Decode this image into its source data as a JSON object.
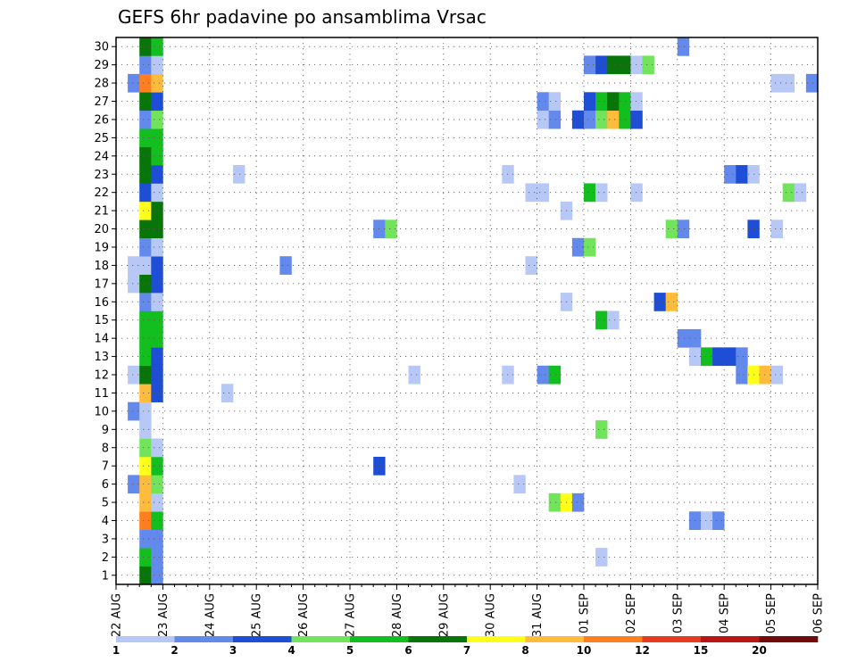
{
  "chart_data": {
    "type": "heatmap",
    "title": "GEFS 6hr padavine po ansamblima Vrsac",
    "xlabel": "",
    "ylabel": "",
    "x_tick_labels": [
      "22 AUG",
      "23 AUG",
      "24 AUG",
      "25 AUG",
      "26 AUG",
      "27 AUG",
      "28 AUG",
      "29 AUG",
      "30 AUG",
      "31 AUG",
      "01 SEP",
      "02 SEP",
      "03 SEP",
      "04 SEP",
      "05 SEP",
      "06 SEP"
    ],
    "y_tick_labels": [
      "1",
      "2",
      "3",
      "4",
      "5",
      "6",
      "7",
      "8",
      "9",
      "10",
      "11",
      "12",
      "13",
      "14",
      "15",
      "16",
      "17",
      "18",
      "19",
      "20",
      "21",
      "22",
      "23",
      "24",
      "25",
      "26",
      "27",
      "28",
      "29",
      "30"
    ],
    "ylim": [
      0.5,
      30.5
    ],
    "x_steps_per_day": 4,
    "grid": true,
    "colorbar": {
      "labels": [
        "1",
        "2",
        "3",
        "4",
        "5",
        "6",
        "7",
        "8",
        "10",
        "12",
        "15",
        "20"
      ],
      "colors": [
        "#b7c7f6",
        "#6489ed",
        "#1f4ed6",
        "#71e45c",
        "#12bf1e",
        "#087508",
        "#ffff1a",
        "#ffbb3c",
        "#ff7f1f",
        "#e53c1e",
        "#b81616",
        "#720a0a"
      ]
    },
    "cells": [
      [
        2,
        1,
        6
      ],
      [
        3,
        1,
        2
      ],
      [
        2,
        2,
        5
      ],
      [
        3,
        2,
        2
      ],
      [
        2,
        3,
        2
      ],
      [
        3,
        3,
        2
      ],
      [
        2,
        4,
        9
      ],
      [
        3,
        4,
        5
      ],
      [
        2,
        5,
        8
      ],
      [
        3,
        5,
        1
      ],
      [
        1,
        6,
        2
      ],
      [
        2,
        6,
        8
      ],
      [
        3,
        6,
        4
      ],
      [
        2,
        7,
        7
      ],
      [
        3,
        7,
        5
      ],
      [
        2,
        8,
        4
      ],
      [
        3,
        8,
        1
      ],
      [
        2,
        9,
        1
      ],
      [
        1,
        10,
        2
      ],
      [
        2,
        10,
        1
      ],
      [
        2,
        11,
        8
      ],
      [
        3,
        11,
        3
      ],
      [
        1,
        12,
        1
      ],
      [
        2,
        12,
        6
      ],
      [
        3,
        12,
        3
      ],
      [
        2,
        13,
        5
      ],
      [
        3,
        13,
        3
      ],
      [
        2,
        14,
        5
      ],
      [
        3,
        14,
        5
      ],
      [
        2,
        15,
        5
      ],
      [
        3,
        15,
        5
      ],
      [
        2,
        16,
        2
      ],
      [
        3,
        16,
        1
      ],
      [
        1,
        17,
        1
      ],
      [
        2,
        17,
        6
      ],
      [
        3,
        17,
        3
      ],
      [
        1,
        18,
        1
      ],
      [
        2,
        18,
        1
      ],
      [
        3,
        18,
        3
      ],
      [
        2,
        19,
        2
      ],
      [
        3,
        19,
        1
      ],
      [
        2,
        20,
        6
      ],
      [
        3,
        20,
        6
      ],
      [
        2,
        21,
        7
      ],
      [
        3,
        21,
        6
      ],
      [
        2,
        22,
        3
      ],
      [
        3,
        22,
        1
      ],
      [
        2,
        23,
        6
      ],
      [
        3,
        23,
        3
      ],
      [
        2,
        24,
        6
      ],
      [
        3,
        24,
        5
      ],
      [
        2,
        25,
        5
      ],
      [
        3,
        25,
        5
      ],
      [
        2,
        26,
        2
      ],
      [
        3,
        26,
        4
      ],
      [
        2,
        27,
        6
      ],
      [
        3,
        27,
        3
      ],
      [
        1,
        28,
        2
      ],
      [
        2,
        28,
        9
      ],
      [
        3,
        28,
        8
      ],
      [
        2,
        29,
        2
      ],
      [
        3,
        29,
        1
      ],
      [
        2,
        30,
        6
      ],
      [
        3,
        30,
        5
      ],
      [
        9,
        11,
        1
      ],
      [
        10,
        23,
        1
      ],
      [
        14,
        18,
        2
      ],
      [
        22,
        7,
        3
      ],
      [
        22,
        20,
        2
      ],
      [
        23,
        20,
        4
      ],
      [
        25,
        12,
        1
      ],
      [
        33,
        12,
        1
      ],
      [
        33,
        23,
        1
      ],
      [
        34,
        6,
        1
      ],
      [
        35,
        18,
        1
      ],
      [
        35,
        22,
        1
      ],
      [
        36,
        22,
        1
      ],
      [
        36,
        12,
        2
      ],
      [
        37,
        12,
        5
      ],
      [
        36,
        26,
        1
      ],
      [
        36,
        27,
        2
      ],
      [
        37,
        26,
        2
      ],
      [
        37,
        27,
        1
      ],
      [
        37,
        5,
        4
      ],
      [
        38,
        5,
        7
      ],
      [
        39,
        5,
        2
      ],
      [
        38,
        21,
        1
      ],
      [
        38,
        16,
        1
      ],
      [
        39,
        19,
        2
      ],
      [
        40,
        19,
        4
      ],
      [
        39,
        26,
        3
      ],
      [
        40,
        26,
        2
      ],
      [
        40,
        27,
        3
      ],
      [
        40,
        29,
        2
      ],
      [
        40,
        22,
        5
      ],
      [
        41,
        26,
        4
      ],
      [
        41,
        27,
        5
      ],
      [
        41,
        29,
        3
      ],
      [
        41,
        15,
        5
      ],
      [
        41,
        9,
        4
      ],
      [
        41,
        2,
        1
      ],
      [
        41,
        22,
        1
      ],
      [
        42,
        26,
        8
      ],
      [
        42,
        27,
        6
      ],
      [
        42,
        29,
        6
      ],
      [
        42,
        15,
        1
      ],
      [
        43,
        26,
        5
      ],
      [
        43,
        27,
        5
      ],
      [
        43,
        29,
        6
      ],
      [
        44,
        26,
        3
      ],
      [
        44,
        27,
        1
      ],
      [
        44,
        29,
        1
      ],
      [
        44,
        22,
        1
      ],
      [
        45,
        29,
        4
      ],
      [
        46,
        16,
        3
      ],
      [
        47,
        16,
        8
      ],
      [
        47,
        20,
        4
      ],
      [
        48,
        20,
        2
      ],
      [
        48,
        14,
        2
      ],
      [
        49,
        14,
        2
      ],
      [
        48,
        30,
        2
      ],
      [
        49,
        13,
        1
      ],
      [
        50,
        13,
        5
      ],
      [
        51,
        13,
        3
      ],
      [
        52,
        13,
        3
      ],
      [
        53,
        13,
        2
      ],
      [
        49,
        4,
        2
      ],
      [
        50,
        4,
        1
      ],
      [
        51,
        4,
        2
      ],
      [
        52,
        23,
        2
      ],
      [
        53,
        23,
        3
      ],
      [
        54,
        23,
        1
      ],
      [
        53,
        12,
        2
      ],
      [
        54,
        12,
        7
      ],
      [
        55,
        12,
        8
      ],
      [
        56,
        12,
        1
      ],
      [
        54,
        20,
        3
      ],
      [
        56,
        20,
        1
      ],
      [
        56,
        28,
        1
      ],
      [
        57,
        28,
        1
      ],
      [
        57,
        22,
        4
      ],
      [
        58,
        22,
        1
      ],
      [
        59,
        28,
        2
      ]
    ]
  }
}
